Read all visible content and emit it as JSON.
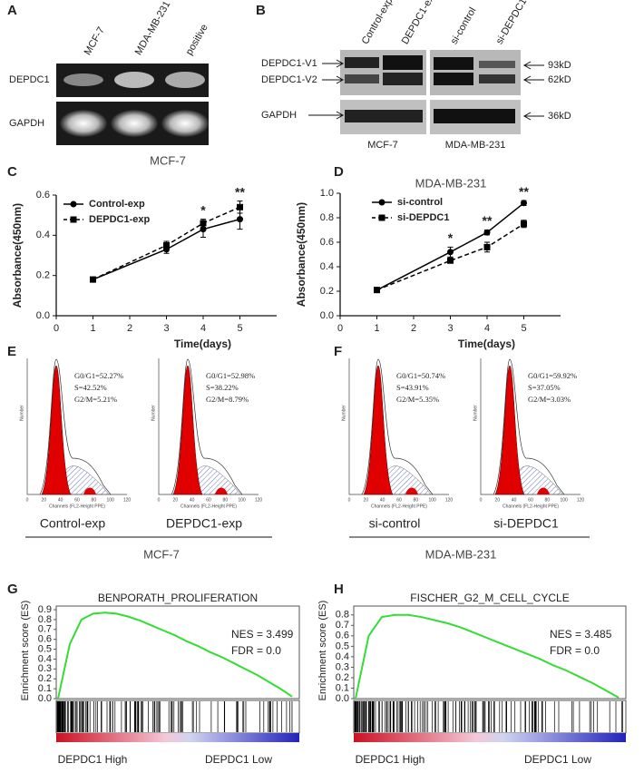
{
  "panel_labels": [
    "A",
    "B",
    "C",
    "D",
    "E",
    "F",
    "G",
    "H"
  ],
  "blot_a": {
    "lanes": [
      "MCF-7",
      "MDA-MB-231",
      "positive"
    ],
    "rows": [
      "DEPDC1",
      "GAPDH"
    ]
  },
  "blot_b": {
    "lanes": [
      "Control-exp",
      "DEPDC1-exp",
      "si-control",
      "si-DEPDC1"
    ],
    "bands": [
      "DEPDC1-V1",
      "DEPDC1-V2",
      "GAPDH"
    ],
    "sizes": [
      "93kD",
      "62kD",
      "36kD"
    ],
    "groups": [
      "MCF-7",
      "MDA-MB-231"
    ]
  },
  "chart_data": [
    {
      "type": "line",
      "title": "MCF-7",
      "xlabel": "Time(days)",
      "ylabel": "Absorbance(450nm)",
      "x": [
        1,
        3,
        4,
        5
      ],
      "series": [
        {
          "name": "Control-exp",
          "color": "#000000",
          "marker": "circle",
          "dash": false,
          "values": [
            0.18,
            0.33,
            0.43,
            0.48
          ],
          "errors": [
            0.01,
            0.02,
            0.04,
            0.05
          ]
        },
        {
          "name": "DEPDC1-exp",
          "color": "#000000",
          "marker": "square",
          "dash": true,
          "values": [
            0.18,
            0.35,
            0.46,
            0.54
          ],
          "errors": [
            0.01,
            0.02,
            0.02,
            0.03
          ]
        }
      ],
      "annotations": [
        {
          "text": "*",
          "x": 4
        },
        {
          "text": "**",
          "x": 5
        }
      ],
      "xlim": [
        0,
        6
      ],
      "xticks": [
        0,
        1,
        2,
        3,
        4,
        5
      ],
      "ylim": [
        0,
        0.6
      ],
      "yticks": [
        {
          "value": 0,
          "label": "0.0"
        },
        0.2,
        0.4,
        0.6
      ],
      "legend": "upper left"
    },
    {
      "type": "line",
      "title": "MDA-MB-231",
      "xlabel": "Time(days)",
      "ylabel": "Absorbance(450nm)",
      "x": [
        1,
        3,
        4,
        5
      ],
      "series": [
        {
          "name": "si-control",
          "color": "#000000",
          "marker": "circle",
          "dash": false,
          "values": [
            0.21,
            0.52,
            0.68,
            0.92
          ],
          "errors": [
            0.01,
            0.04,
            0.02,
            0.02
          ]
        },
        {
          "name": "si-DEPDC1",
          "color": "#000000",
          "marker": "square",
          "dash": true,
          "values": [
            0.21,
            0.45,
            0.56,
            0.75
          ],
          "errors": [
            0.01,
            0.02,
            0.04,
            0.03
          ]
        }
      ],
      "annotations": [
        {
          "text": "*",
          "x": 3
        },
        {
          "text": "**",
          "x": 4
        },
        {
          "text": "**",
          "x": 5
        }
      ],
      "xlim": [
        0,
        6
      ],
      "xticks": [
        0,
        1,
        2,
        3,
        4,
        5
      ],
      "ylim": [
        0,
        1
      ],
      "yticks": [
        {
          "value": 0,
          "label": "0.0"
        },
        0.2,
        0.4,
        0.6,
        0.8,
        {
          "value": 1,
          "label": "1.0"
        }
      ],
      "legend": "upper left"
    },
    {
      "type": "enrichment",
      "title": "BENPORATH_PROLIFERATION",
      "ylabel": "Enrichment score (ES)",
      "color": "#33dd33",
      "values": [
        0,
        0.55,
        0.8,
        0.86,
        0.87,
        0.86,
        0.83,
        0.79,
        0.74,
        0.69,
        0.64,
        0.58,
        0.53,
        0.47,
        0.42,
        0.36,
        0.3,
        0.24,
        0.17,
        0.1,
        0.02
      ],
      "annotations": [
        "NES = 3.499",
        "FDR = 0.0"
      ],
      "group_labels": [
        "DEPDC1 High",
        "DEPDC1 Low"
      ],
      "ylim": [
        0,
        0.9
      ],
      "yticks": [
        {
          "value": 0,
          "label": "0.0"
        },
        0.1,
        0.2,
        0.3,
        0.4,
        0.5,
        0.6,
        0.7,
        0.8,
        0.9
      ]
    },
    {
      "type": "enrichment",
      "title": "FISCHER_G2_M_CELL_CYCLE",
      "ylabel": "Enrichment score (ES)",
      "color": "#33dd33",
      "values": [
        0,
        0.6,
        0.78,
        0.8,
        0.8,
        0.78,
        0.75,
        0.72,
        0.68,
        0.63,
        0.58,
        0.53,
        0.48,
        0.43,
        0.38,
        0.32,
        0.27,
        0.21,
        0.15,
        0.08,
        0.01
      ],
      "annotations": [
        "NES = 3.485",
        "FDR = 0.0"
      ],
      "group_labels": [
        "DEPDC1 High",
        "DEPDC1 Low"
      ],
      "ylim": [
        0,
        0.85
      ],
      "yticks": [
        {
          "value": 0,
          "label": "0.0"
        },
        0.1,
        0.2,
        0.3,
        0.4,
        0.5,
        0.6,
        0.7,
        0.8
      ]
    }
  ],
  "flow": {
    "ylabel": "Number",
    "xlabel": "Channels (FL2-Height PPE)",
    "xticks": [
      0,
      20,
      40,
      60,
      80,
      100,
      120
    ],
    "samples": [
      {
        "name": "Control-exp",
        "stats": [
          "G0/G1=52.27%",
          "S=42.52%",
          "G2/M=5.21%"
        ]
      },
      {
        "name": "DEPDC1-exp",
        "stats": [
          "G0/G1=52.98%",
          "S=38.22%",
          "G2/M=8.79%"
        ]
      },
      {
        "name": "si-control",
        "stats": [
          "G0/G1=50.74%",
          "S=43.91%",
          "G2/M=5.35%"
        ]
      },
      {
        "name": "si-DEPDC1",
        "stats": [
          "G0/G1=59.92%",
          "S=37.05%",
          "G2/M=3.03%"
        ]
      }
    ],
    "groups": [
      "MCF-7",
      "MDA-MB-231"
    ]
  }
}
